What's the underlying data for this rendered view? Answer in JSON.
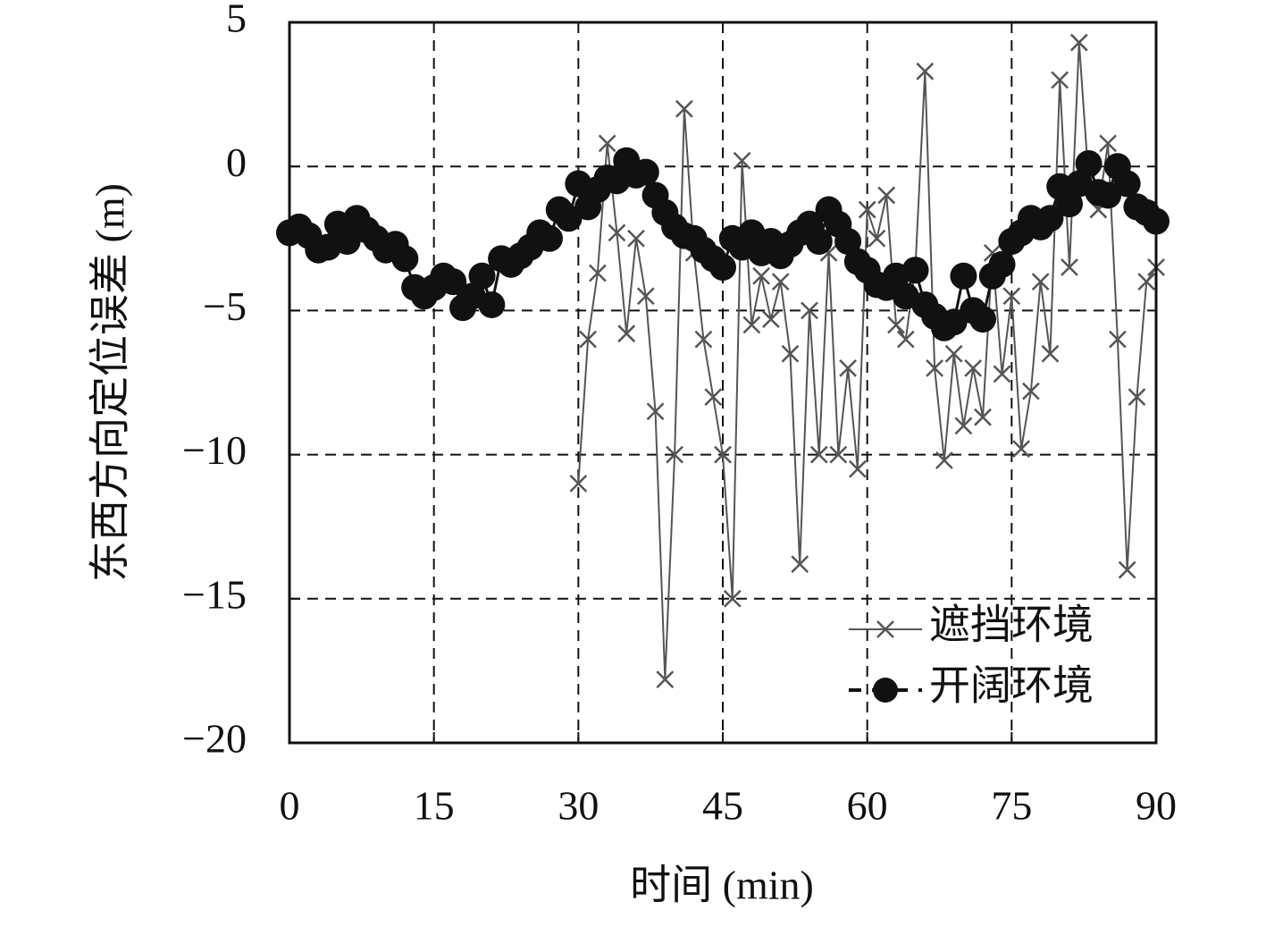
{
  "chart_data": {
    "type": "line",
    "x_label": "时间 (min)",
    "y_label": "东西方向定位误差 (m)",
    "xlim": [
      0,
      90
    ],
    "xticks": [
      0,
      15,
      30,
      45,
      60,
      75,
      90
    ],
    "ylim": [
      -20,
      5
    ],
    "yticks": [
      {
        "value": -20,
        "label": "−20"
      },
      {
        "value": -15,
        "label": "−15"
      },
      {
        "value": -10,
        "label": "−10"
      },
      {
        "value": -5,
        "label": "−5"
      },
      0,
      5
    ],
    "grid": true,
    "legend": "lower right",
    "series": [
      {
        "name": "遮挡环境",
        "color": "#555555",
        "marker": "x",
        "x": [
          30,
          31,
          32,
          33,
          34,
          35,
          36,
          37,
          38,
          39,
          40,
          41,
          42,
          43,
          44,
          45,
          46,
          47,
          48,
          49,
          50,
          51,
          52,
          53,
          54,
          55,
          56,
          57,
          58,
          59,
          60,
          61,
          62,
          63,
          64,
          65,
          66,
          67,
          68,
          69,
          70,
          71,
          72,
          73,
          74,
          75,
          76,
          77,
          78,
          79,
          80,
          81,
          82,
          83,
          84,
          85,
          86,
          87,
          88,
          89,
          90
        ],
        "values": [
          -11,
          -6,
          -3.7,
          0.8,
          -2.3,
          -5.8,
          -2.5,
          -4.5,
          -8.5,
          -17.8,
          -10,
          2.0,
          -3,
          -6,
          -8,
          -10,
          -15,
          0.2,
          -5.5,
          -3.8,
          -5.3,
          -4,
          -6.5,
          -13.8,
          -5,
          -10,
          -3,
          -10,
          -7,
          -10.5,
          -1.5,
          -2.5,
          -1.0,
          -5.5,
          -6,
          -3.5,
          3.3,
          -7,
          -10.2,
          -6.5,
          -9,
          -7,
          -8.7,
          -3,
          -7.2,
          -4.5,
          -9.8,
          -7.8,
          -4,
          -6.5,
          3.0,
          -3.5,
          4.3,
          -0.5,
          -1.5,
          0.8,
          -6,
          -14,
          -8,
          -4,
          -3.5
        ]
      },
      {
        "name": "开阔环境",
        "color": "#111111",
        "marker": "o",
        "x": [
          0,
          1,
          2,
          3,
          4,
          5,
          6,
          7,
          8,
          9,
          10,
          11,
          12,
          13,
          14,
          15,
          16,
          17,
          18,
          19,
          20,
          21,
          22,
          23,
          24,
          25,
          26,
          27,
          28,
          29,
          30,
          31,
          32,
          33,
          34,
          35,
          36,
          37,
          38,
          39,
          40,
          41,
          42,
          43,
          44,
          45,
          46,
          47,
          48,
          49,
          50,
          51,
          52,
          53,
          54,
          55,
          56,
          57,
          58,
          59,
          60,
          61,
          62,
          63,
          64,
          65,
          66,
          67,
          68,
          69,
          70,
          71,
          72,
          73,
          74,
          75,
          76,
          77,
          78,
          79,
          80,
          81,
          82,
          83,
          84,
          85,
          86,
          87,
          88,
          89,
          90
        ],
        "values": [
          -2.3,
          -2.1,
          -2.4,
          -2.9,
          -2.8,
          -2.0,
          -2.6,
          -1.8,
          -2.2,
          -2.5,
          -2.9,
          -2.7,
          -3.2,
          -4.2,
          -4.5,
          -4.2,
          -3.8,
          -4.0,
          -4.9,
          -4.5,
          -3.8,
          -4.8,
          -3.2,
          -3.4,
          -3.1,
          -2.8,
          -2.3,
          -2.5,
          -1.5,
          -1.8,
          -0.6,
          -1.4,
          -0.8,
          -0.4,
          -0.5,
          0.2,
          -0.3,
          -0.2,
          -1.0,
          -1.6,
          -2.1,
          -2.4,
          -2.5,
          -2.9,
          -3.2,
          -3.5,
          -2.5,
          -2.8,
          -2.3,
          -3.0,
          -2.6,
          -3.1,
          -2.7,
          -2.3,
          -2.0,
          -2.6,
          -1.5,
          -2.0,
          -2.6,
          -3.3,
          -3.6,
          -4.1,
          -4.2,
          -3.8,
          -4.5,
          -3.6,
          -4.8,
          -5.2,
          -5.6,
          -5.4,
          -3.8,
          -5.0,
          -5.3,
          -3.8,
          -3.4,
          -2.6,
          -2.3,
          -1.8,
          -2.1,
          -1.8,
          -0.7,
          -1.3,
          -0.6,
          0.1,
          -0.9,
          -1.0,
          0.0,
          -0.6,
          -1.4,
          -1.6,
          -1.9
        ]
      }
    ]
  }
}
